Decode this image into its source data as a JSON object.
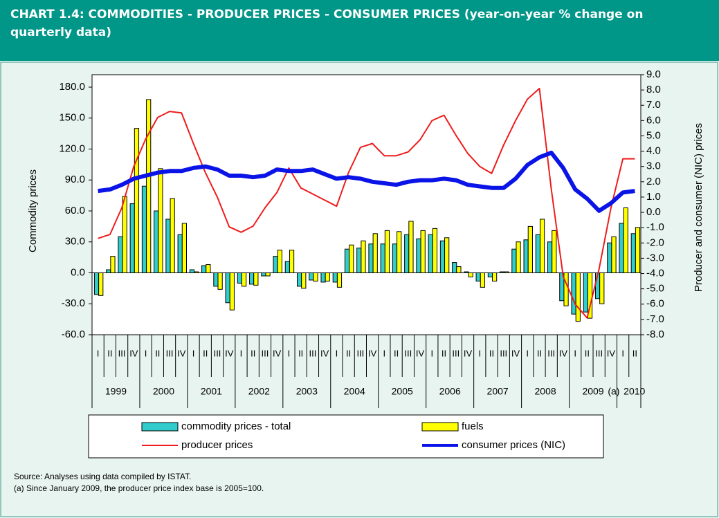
{
  "header": {
    "title": "CHART 1.4: COMMODITIES - PRODUCER PRICES - CONSUMER PRICES (year-on-year % change on quarterly data)"
  },
  "chart_data": {
    "type": "bar",
    "categories": [
      "I",
      "II",
      "III",
      "IV",
      "I",
      "II",
      "III",
      "IV",
      "I",
      "II",
      "III",
      "IV",
      "I",
      "II",
      "III",
      "IV",
      "I",
      "II",
      "III",
      "IV",
      "I",
      "II",
      "III",
      "IV",
      "I",
      "II",
      "III",
      "IV",
      "I",
      "II",
      "III",
      "IV",
      "I",
      "II",
      "III",
      "IV",
      "I",
      "II",
      "III",
      "IV",
      "I",
      "II",
      "III",
      "IV",
      "I",
      "II"
    ],
    "years": [
      "1999",
      "2000",
      "2001",
      "2002",
      "2003",
      "2004",
      "2005",
      "2006",
      "2007",
      "2008",
      "2009",
      "2010"
    ],
    "annotation": "(a)",
    "ylabel": "Commodity prices",
    "y2label": "Producer and consumer (NIC) prices",
    "ylim": [
      -60,
      180
    ],
    "yticks": [
      {
        "value": -60,
        "label": "-60.0"
      },
      {
        "value": -30,
        "label": "-30.0"
      },
      {
        "value": 0,
        "label": "0.0"
      },
      {
        "value": 30,
        "label": "30.0"
      },
      {
        "value": 60,
        "label": "60.0"
      },
      {
        "value": 90,
        "label": "90.0"
      },
      {
        "value": 120,
        "label": "120.0"
      },
      {
        "value": 150,
        "label": "150.0"
      },
      {
        "value": 180,
        "label": "180.0"
      }
    ],
    "y2lim": [
      -8,
      9
    ],
    "y2ticks": [
      {
        "value": -8,
        "label": "-8.0"
      },
      {
        "value": -7,
        "label": "-7.0"
      },
      {
        "value": -6,
        "label": "-6.0"
      },
      {
        "value": -5,
        "label": "-5.0"
      },
      {
        "value": -4,
        "label": "-4.0"
      },
      {
        "value": -3,
        "label": "-3.0"
      },
      {
        "value": -2,
        "label": "-2.0"
      },
      {
        "value": -1,
        "label": "-1.0"
      },
      {
        "value": 0,
        "label": "0.0"
      },
      {
        "value": 1,
        "label": "1.0"
      },
      {
        "value": 2,
        "label": "2.0"
      },
      {
        "value": 3,
        "label": "3.0"
      },
      {
        "value": 4,
        "label": "4.0"
      },
      {
        "value": 5,
        "label": "5.0"
      },
      {
        "value": 6,
        "label": "6.0"
      },
      {
        "value": 7,
        "label": "7.0"
      },
      {
        "value": 8,
        "label": "8.0"
      },
      {
        "value": 9,
        "label": "9.0"
      }
    ],
    "series": [
      {
        "name": "commodity prices - total",
        "type": "bar",
        "color": "#33cccc",
        "values": [
          -21,
          3,
          35,
          67,
          84,
          60,
          52,
          37,
          3,
          7,
          -13,
          -29,
          -10,
          -11,
          -3,
          16,
          11,
          -13,
          -7,
          -9,
          -9,
          23,
          24,
          28,
          28,
          28,
          37,
          33,
          37,
          31,
          10,
          1,
          -8,
          -4,
          1,
          23,
          32,
          37,
          30,
          -27,
          -40,
          -38,
          -25,
          29,
          48,
          38
        ]
      },
      {
        "name": "fuels",
        "type": "bar",
        "color": "#ffff00",
        "values": [
          -22,
          16,
          74,
          140,
          168,
          101,
          72,
          48,
          1,
          8,
          -16,
          -36,
          -13,
          -12,
          -3,
          22,
          22,
          -15,
          -8,
          -8,
          -14,
          27,
          31,
          38,
          41,
          40,
          50,
          41,
          43,
          34,
          6,
          -4,
          -14,
          -8,
          1,
          30,
          45,
          52,
          41,
          -32,
          -47,
          -44,
          -30,
          35,
          63,
          44
        ]
      },
      {
        "name": "producer prices",
        "type": "line",
        "axis": "y2",
        "color": "#ee1c1c",
        "values": [
          -1.7,
          -1.45,
          0.3,
          3.0,
          4.8,
          6.2,
          6.6,
          6.5,
          4.5,
          2.6,
          1.0,
          -0.95,
          -1.3,
          -0.9,
          0.3,
          1.3,
          2.9,
          1.6,
          1.2,
          0.8,
          0.4,
          2.6,
          4.25,
          4.5,
          3.7,
          3.7,
          3.95,
          4.75,
          6.0,
          6.35,
          5.05,
          3.85,
          3.0,
          2.55,
          4.4,
          6.0,
          7.4,
          8.1,
          1.5,
          -4.2,
          -6.0,
          -6.9,
          -3.7,
          0.3,
          3.5,
          3.5
        ]
      },
      {
        "name": "consumer prices (NIC)",
        "type": "line",
        "axis": "y2",
        "color": "#0a14e6",
        "values": [
          1.4,
          1.5,
          1.8,
          2.2,
          2.4,
          2.6,
          2.7,
          2.7,
          2.9,
          3.0,
          2.8,
          2.4,
          2.4,
          2.3,
          2.4,
          2.8,
          2.7,
          2.7,
          2.8,
          2.5,
          2.2,
          2.3,
          2.2,
          2.0,
          1.9,
          1.8,
          2.0,
          2.1,
          2.1,
          2.2,
          2.1,
          1.8,
          1.7,
          1.6,
          1.6,
          2.2,
          3.1,
          3.6,
          3.9,
          2.9,
          1.5,
          0.9,
          0.1,
          0.6,
          1.3,
          1.4
        ]
      }
    ]
  },
  "footer": {
    "source": "Source: Analyses using data compiled by ISTAT.",
    "note": "(a) Since January 2009, the producer price index base is 2005=100."
  }
}
